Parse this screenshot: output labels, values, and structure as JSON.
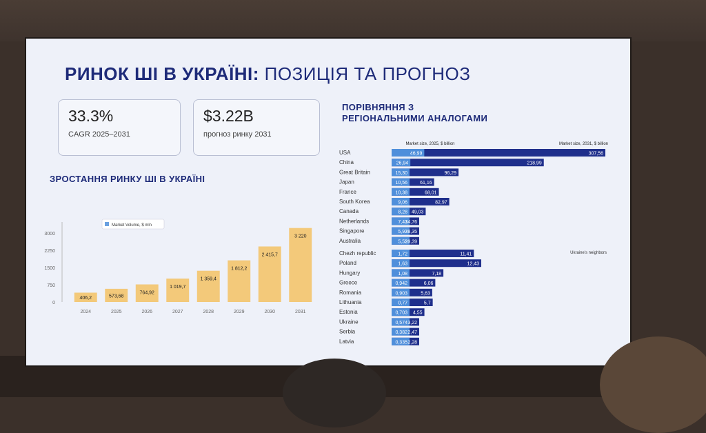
{
  "slide": {
    "title_bold": "РИНОК ШІ В УКРАЇНІ:",
    "title_rest": "ПОЗИЦІЯ ТА ПРОГНОЗ"
  },
  "kpis": [
    {
      "value": "33.3%",
      "label": "CAGR 2025–2031"
    },
    {
      "value": "$3.22B",
      "label": "прогноз ринку 2031"
    }
  ],
  "colors": {
    "bar_gold": "#f3c97a",
    "bar_light": "#4f8fdb",
    "bar_dark": "#1f2f8c",
    "title": "#1e2b79"
  },
  "chart_data": [
    {
      "type": "bar",
      "title": "ЗРОСТАННЯ РИНКУ ШІ В УКРАЇНІ",
      "legend": "Market Volume, $ mln",
      "categories": [
        "2024",
        "2025",
        "2026",
        "2027",
        "2028",
        "2029",
        "2030",
        "2031"
      ],
      "values": [
        406.2,
        573.68,
        764.92,
        1019.7,
        1359.4,
        1812.2,
        2415.7,
        3220
      ],
      "labels": [
        "406,2",
        "573,68",
        "764,92",
        "1 019,7",
        "1 359,4",
        "1 812,2",
        "2 415,7",
        "3 220"
      ],
      "yticks": [
        "0",
        "750",
        "1500",
        "2250",
        "3000"
      ],
      "ytick_values": [
        0,
        750,
        1500,
        2250,
        3000
      ],
      "ylim": [
        0,
        3300
      ]
    },
    {
      "type": "bar",
      "title_line1": "ПОРІВНЯННЯ З",
      "title_line2": "РЕГІОНАЛЬНИМИ АНАЛОГАМИ",
      "header_left": "Market size, 2025, $ billion",
      "header_right": "Market size, 2031, $ billion",
      "group_note": "Ukraine's neighbors",
      "groups": [
        {
          "rows": [
            {
              "country": "USA",
              "v2025": 46.99,
              "v2031": 307.56,
              "l2025": "46,99",
              "l2031": "307,56"
            },
            {
              "country": "China",
              "v2025": 26.94,
              "v2031": 218.99,
              "l2025": "26,94",
              "l2031": "218,99"
            },
            {
              "country": "Great Britain",
              "v2025": 15.3,
              "v2031": 96.29,
              "l2025": "15,30",
              "l2031": "96,29"
            },
            {
              "country": "Japan",
              "v2025": 10.56,
              "v2031": 61.16,
              "l2025": "10,56",
              "l2031": "61,16"
            },
            {
              "country": "France",
              "v2025": 10.38,
              "v2031": 68.01,
              "l2025": "10,38",
              "l2031": "68,01"
            },
            {
              "country": "South Korea",
              "v2025": 9.06,
              "v2031": 82.97,
              "l2025": "9,06",
              "l2031": "82,97"
            },
            {
              "country": "Canada",
              "v2025": 8.28,
              "v2031": 49.03,
              "l2025": "8,28",
              "l2031": "49,03"
            },
            {
              "country": "Netherlands",
              "v2025": 7.41,
              "v2031": 34.76,
              "l2025": "7,41",
              "l2031": "34,76"
            },
            {
              "country": "Singapore",
              "v2025": 5.97,
              "v2031": 38.35,
              "l2025": "5,97",
              "l2031": "38,35"
            },
            {
              "country": "Australia",
              "v2025": 5.55,
              "v2031": 29.39,
              "l2025": "5,55",
              "l2031": "29,39"
            }
          ]
        },
        {
          "rows": [
            {
              "country": "Chezh republic",
              "v2025": 1.72,
              "v2031": 11.41,
              "l2025": "1,72",
              "l2031": "11,41"
            },
            {
              "country": "Poland",
              "v2025": 1.63,
              "v2031": 12.43,
              "l2025": "1,63",
              "l2031": "12,43"
            },
            {
              "country": "Hungary",
              "v2025": 1.08,
              "v2031": 7.18,
              "l2025": "1,08",
              "l2031": "7,18"
            },
            {
              "country": "Greece",
              "v2025": 0.942,
              "v2031": 6.06,
              "l2025": "0,942",
              "l2031": "6,06"
            },
            {
              "country": "Romania",
              "v2025": 0.903,
              "v2031": 5.63,
              "l2025": "0,903",
              "l2031": "5,63"
            },
            {
              "country": "Lithuania",
              "v2025": 0.77,
              "v2031": 5.7,
              "l2025": "0,77",
              "l2031": "5,7"
            },
            {
              "country": "Estonia",
              "v2025": 0.703,
              "v2031": 4.55,
              "l2025": "0,703",
              "l2031": "4,55"
            },
            {
              "country": "Ukraine",
              "v2025": 0.574,
              "v2031": 3.22,
              "l2025": "0,574",
              "l2031": "3,22"
            },
            {
              "country": "Serbia",
              "v2025": 0.382,
              "v2031": 2.47,
              "l2025": "0,382",
              "l2031": "2,47"
            },
            {
              "country": "Latvia",
              "v2025": 0.335,
              "v2031": 2.28,
              "l2025": "0,335",
              "l2031": "2,28"
            }
          ]
        }
      ]
    }
  ]
}
